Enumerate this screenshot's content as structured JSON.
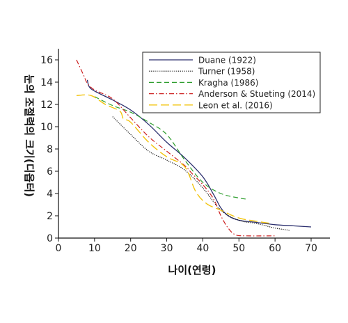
{
  "chart_data": {
    "type": "line",
    "xlabel": "나이(연령)",
    "ylabel": "눈의 조절력의 크기(디옵터)",
    "xlim": [
      0,
      75
    ],
    "ylim": [
      0,
      17
    ],
    "xticks": [
      0,
      10,
      20,
      30,
      40,
      50,
      60,
      70
    ],
    "yticks": [
      0,
      2,
      4,
      6,
      8,
      10,
      12,
      14,
      16
    ],
    "grid": false,
    "legend_position": "top-right",
    "series": [
      {
        "name": "Duane (1922)",
        "color": "#2b2f6e",
        "dash": "solid",
        "points": [
          [
            8,
            14.2
          ],
          [
            8.5,
            13.6
          ],
          [
            10,
            13.2
          ],
          [
            15,
            12.4
          ],
          [
            20,
            11.5
          ],
          [
            25,
            10.2
          ],
          [
            30,
            8.6
          ],
          [
            35,
            7.2
          ],
          [
            40,
            5.5
          ],
          [
            43,
            3.9
          ],
          [
            45,
            2.7
          ],
          [
            47,
            2.0
          ],
          [
            50,
            1.6
          ],
          [
            55,
            1.4
          ],
          [
            60,
            1.2
          ],
          [
            65,
            1.1
          ],
          [
            70,
            1.0
          ]
        ]
      },
      {
        "name": "Turner (1958)",
        "color": "#111111",
        "dash": "dotted",
        "points": [
          [
            15,
            10.9
          ],
          [
            20,
            9.3
          ],
          [
            25,
            7.8
          ],
          [
            30,
            7.0
          ],
          [
            35,
            6.1
          ],
          [
            40,
            4.5
          ],
          [
            45,
            2.5
          ],
          [
            50,
            1.6
          ],
          [
            55,
            1.3
          ],
          [
            60,
            0.9
          ],
          [
            64,
            0.7
          ]
        ]
      },
      {
        "name": "Kragha (1986)",
        "color": "#2e9e2e",
        "dash": "dashed",
        "points": [
          [
            10,
            12.7
          ],
          [
            15,
            11.9
          ],
          [
            20,
            11.3
          ],
          [
            25,
            10.4
          ],
          [
            30,
            9.3
          ],
          [
            35,
            7.0
          ],
          [
            40,
            5.0
          ],
          [
            45,
            4.0
          ],
          [
            50,
            3.6
          ],
          [
            52,
            3.5
          ]
        ]
      },
      {
        "name": "Anderson & Stueting (2014)",
        "color": "#cc1f1f",
        "dash": "dashdot",
        "points": [
          [
            5,
            16.0
          ],
          [
            7,
            14.6
          ],
          [
            8,
            13.9
          ],
          [
            10,
            13.3
          ],
          [
            15,
            12.5
          ],
          [
            20,
            10.8
          ],
          [
            25,
            9.1
          ],
          [
            30,
            7.8
          ],
          [
            35,
            6.5
          ],
          [
            37,
            5.8
          ],
          [
            40,
            4.8
          ],
          [
            43,
            3.5
          ],
          [
            45,
            2.0
          ],
          [
            47,
            0.9
          ],
          [
            49,
            0.3
          ],
          [
            52,
            0.2
          ],
          [
            60,
            0.2
          ]
        ]
      },
      {
        "name": "Leon et al. (2016)",
        "color": "#f2c40f",
        "dash": "longdash",
        "points": [
          [
            5,
            12.8
          ],
          [
            9,
            12.8
          ],
          [
            13,
            12.0
          ],
          [
            17,
            11.4
          ],
          [
            18,
            10.7
          ],
          [
            20,
            10.4
          ],
          [
            25,
            8.6
          ],
          [
            30,
            7.3
          ],
          [
            35,
            6.4
          ],
          [
            38,
            4.2
          ],
          [
            41,
            3.1
          ],
          [
            45,
            2.5
          ],
          [
            50,
            1.8
          ],
          [
            55,
            1.5
          ],
          [
            59,
            1.3
          ]
        ]
      }
    ]
  }
}
